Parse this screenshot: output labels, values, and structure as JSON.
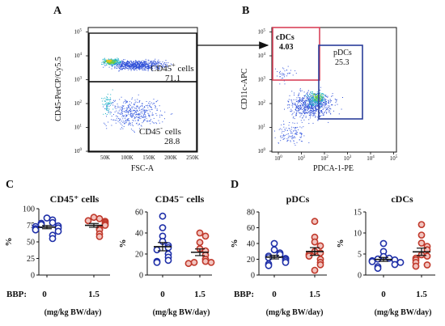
{
  "panels": {
    "A": "A",
    "B": "B",
    "C": "C",
    "D": "D"
  },
  "panelA": {
    "ylabel": "CD45-PerCP/Cy5.5",
    "xlabel": "FSC-A",
    "xticks": [
      "50K",
      "100K",
      "150K",
      "200K",
      "250K"
    ],
    "gate_pos": {
      "label": "CD45",
      "sup": "+",
      "suffix": " cells",
      "value": "71.1"
    },
    "gate_neg": {
      "label": "CD45",
      "sup": "-",
      "suffix": " cells",
      "value": "28.8"
    }
  },
  "panelB": {
    "ylabel": "CD11c-APC",
    "xlabel": "PDCA-1-PE",
    "gate_cdc": {
      "label": "cDCs",
      "value": "4.03",
      "color": "#d9435a"
    },
    "gate_pdc": {
      "label": "pDCs",
      "value": "25.3",
      "color": "#2a3d9a"
    }
  },
  "axis_exp": {
    "base": "10",
    "exps": [
      "0",
      "1",
      "2",
      "3",
      "4",
      "5"
    ]
  },
  "treatment": {
    "row_label": "BBP:",
    "doses": [
      "0",
      "1.5"
    ],
    "unit": "(mg/kg BW/day)"
  },
  "colors": {
    "control": "#1e2fa8",
    "bbp": "#c0392b",
    "bbp_fill": "#f2c4bf"
  },
  "chart_data": [
    {
      "type": "scatter",
      "title": "CD45⁺ cells",
      "ylabel": "%",
      "ylim": [
        0,
        100
      ],
      "yticks": [
        "0",
        "25",
        "50",
        "75",
        "100"
      ],
      "categories": [
        "0",
        "1.5"
      ],
      "series": [
        {
          "values": [
            86,
            83,
            79,
            78,
            76,
            74,
            73,
            71,
            70,
            68,
            66,
            60,
            55
          ]
        },
        {
          "values": [
            87,
            85,
            82,
            81,
            79,
            77,
            75,
            70,
            68,
            62,
            58
          ]
        }
      ]
    },
    {
      "type": "scatter",
      "title": "CD45⁻ cells",
      "ylabel": "%",
      "ylim": [
        0,
        60
      ],
      "yticks": [
        "0",
        "20",
        "40",
        "60"
      ],
      "categories": [
        "0",
        "1.5"
      ],
      "series": [
        {
          "values": [
            56,
            45,
            37,
            32,
            28,
            26,
            24,
            20,
            17,
            14,
            13,
            12
          ]
        },
        {
          "values": [
            40,
            37,
            31,
            25,
            23,
            19,
            15,
            13,
            12,
            12,
            11
          ]
        }
      ]
    },
    {
      "type": "scatter",
      "title": "pDCs",
      "ylabel": "%",
      "ylim": [
        0,
        80
      ],
      "yticks": [
        "0",
        "20",
        "40",
        "60",
        "80"
      ],
      "categories": [
        "0",
        "1.5"
      ],
      "series": [
        {
          "values": [
            40,
            32,
            28,
            26,
            24,
            22,
            21,
            20,
            18,
            16,
            14,
            12
          ]
        },
        {
          "values": [
            68,
            48,
            42,
            37,
            30,
            28,
            26,
            24,
            20,
            16,
            13,
            6
          ]
        }
      ]
    },
    {
      "type": "scatter",
      "title": "cDCs",
      "ylabel": "%",
      "ylim": [
        0,
        15
      ],
      "yticks": [
        "0",
        "5",
        "10",
        "15"
      ],
      "categories": [
        "0",
        "1.5"
      ],
      "series": [
        {
          "values": [
            7.5,
            5.6,
            4.4,
            4.0,
            3.8,
            3.6,
            3.4,
            3.2,
            3.0,
            2.5,
            2.0,
            1.6
          ]
        },
        {
          "values": [
            12.0,
            9.5,
            7.6,
            6.8,
            6.0,
            4.8,
            4.5,
            4.0,
            3.6,
            3.0,
            2.4,
            2.1
          ]
        }
      ]
    }
  ]
}
